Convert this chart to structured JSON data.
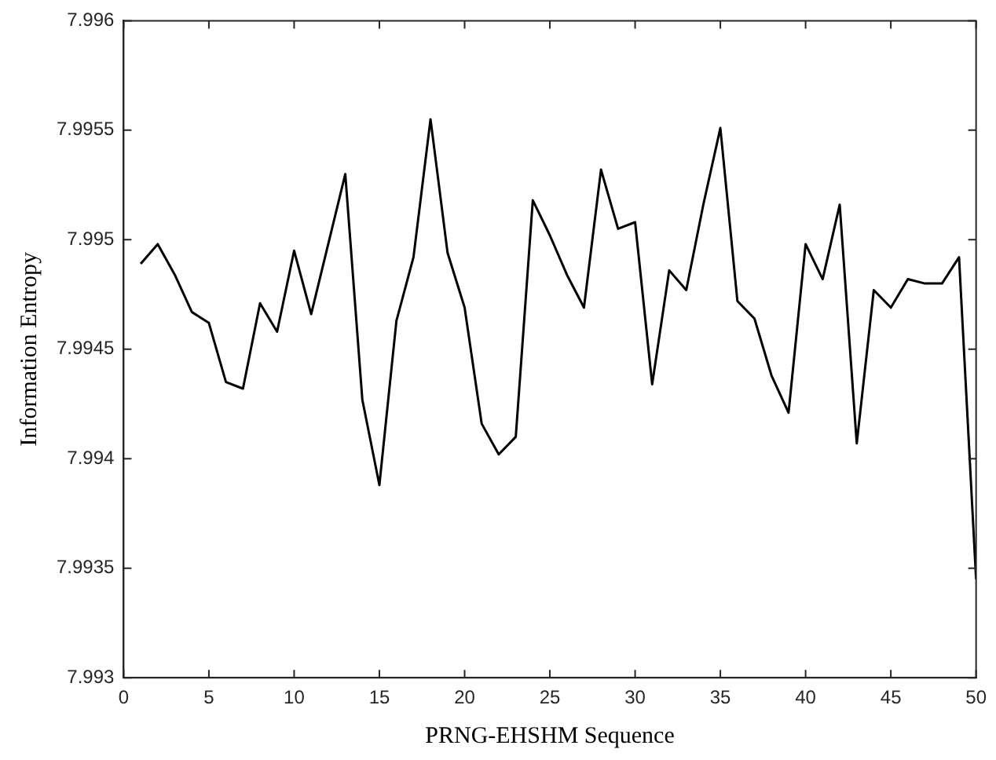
{
  "chart_data": {
    "type": "line",
    "xlabel": "PRNG-EHSHM Sequence",
    "ylabel": "Information Entropy",
    "x": [
      1,
      2,
      3,
      4,
      5,
      6,
      7,
      8,
      9,
      10,
      11,
      12,
      13,
      14,
      15,
      16,
      17,
      18,
      19,
      20,
      21,
      22,
      23,
      24,
      25,
      26,
      27,
      28,
      29,
      30,
      31,
      32,
      33,
      34,
      35,
      36,
      37,
      38,
      39,
      40,
      41,
      42,
      43,
      44,
      45,
      46,
      47,
      48,
      49,
      50
    ],
    "series": [
      {
        "color": "#000000",
        "values": [
          7.99489,
          7.99498,
          7.99484,
          7.99467,
          7.99462,
          7.99435,
          7.99432,
          7.99471,
          7.99458,
          7.99495,
          7.99466,
          7.99498,
          7.9953,
          7.99427,
          7.99388,
          7.99463,
          7.99492,
          7.99555,
          7.99494,
          7.99469,
          7.99416,
          7.99402,
          7.9941,
          7.99518,
          7.99502,
          7.99484,
          7.99469,
          7.99532,
          7.99505,
          7.99508,
          7.99434,
          7.99486,
          7.99477,
          7.99516,
          7.99551,
          7.99472,
          7.99464,
          7.99438,
          7.99421,
          7.99498,
          7.99482,
          7.99516,
          7.99407,
          7.99477,
          7.99469,
          7.99482,
          7.9948,
          7.9948,
          7.99492,
          7.99345
        ]
      }
    ],
    "xlim": [
      0,
      50
    ],
    "xticks": [
      0,
      5,
      10,
      15,
      20,
      25,
      30,
      35,
      40,
      45,
      50
    ],
    "ylim": [
      7.993,
      7.996
    ],
    "yticks": [
      7.993,
      7.9935,
      7.994,
      7.9945,
      7.995,
      7.9955,
      7.996
    ],
    "grid": false,
    "legend": false,
    "marker": "none",
    "line_style": "solid"
  }
}
